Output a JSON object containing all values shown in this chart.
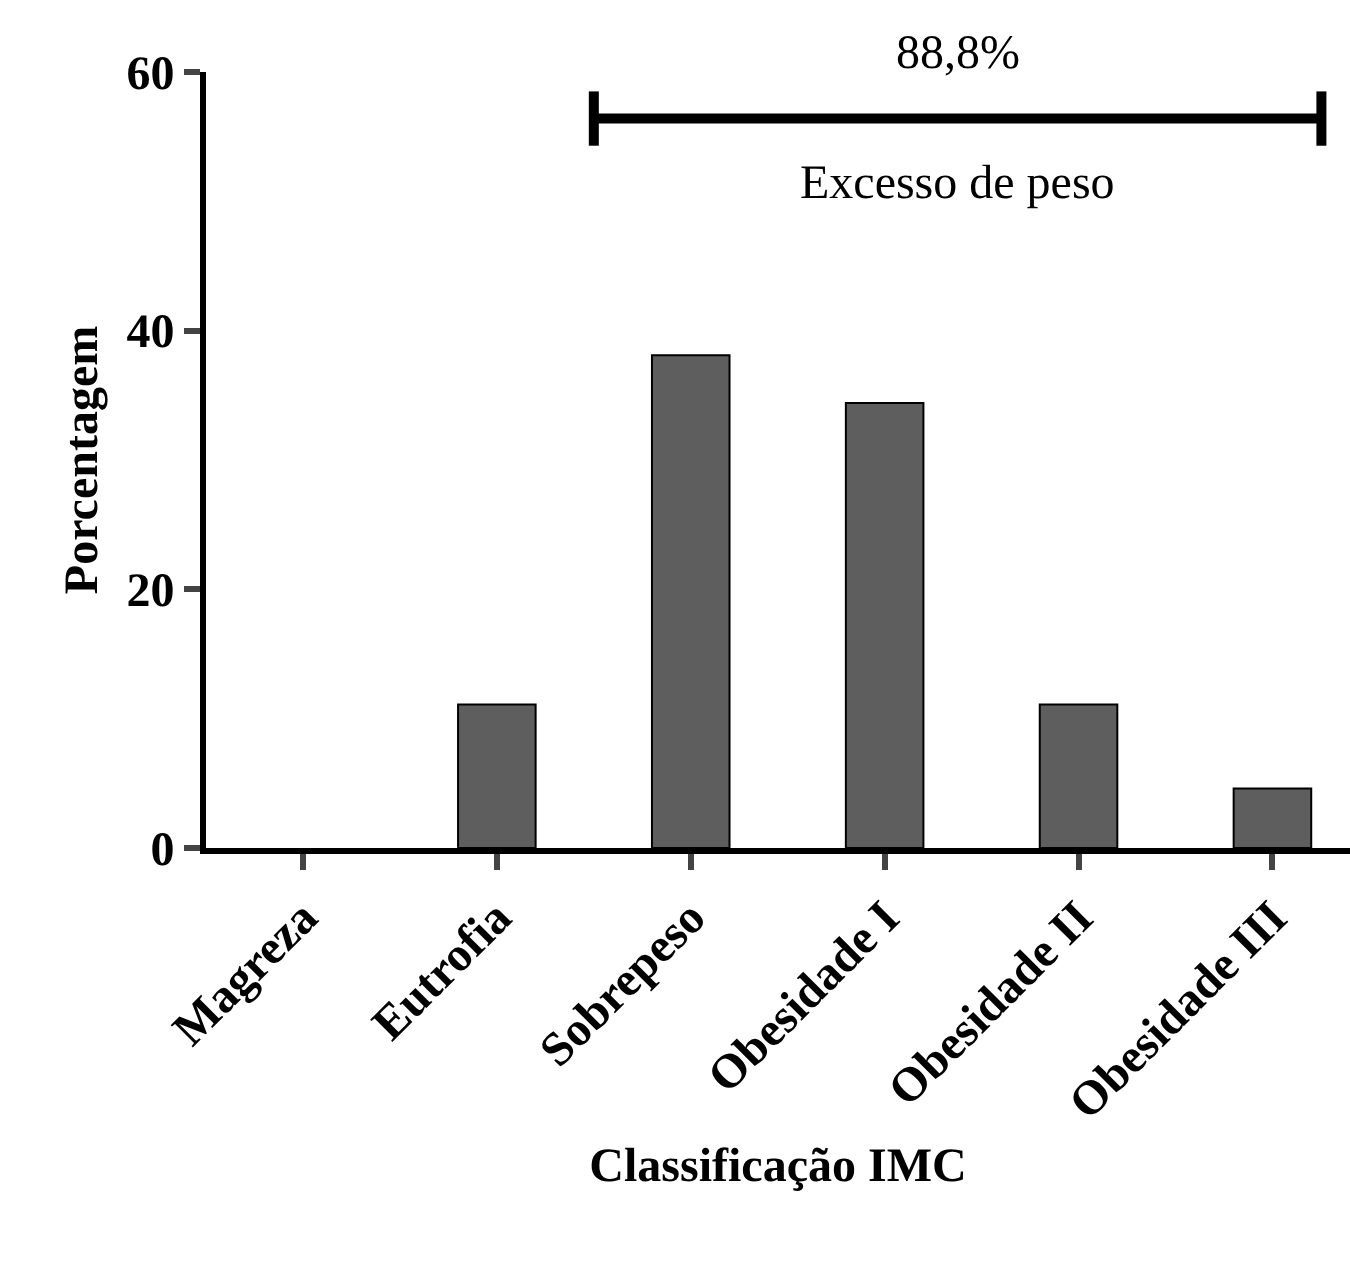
{
  "chart_data": {
    "type": "bar",
    "xlabel": "Classificação IMC",
    "ylabel": "Porcentagem",
    "categories": [
      "Magreza",
      "Eutrofia",
      "Sobrepeso",
      "Obesidade I",
      "Obesidade II",
      "Obesidade III"
    ],
    "values": [
      0,
      11.1,
      38.1,
      34.4,
      11.1,
      4.6
    ],
    "color": "#5e5e5e",
    "ylim": [
      0,
      60
    ],
    "yticks": [
      0,
      20,
      40,
      60
    ],
    "legend": false,
    "ref_lines": [
      {
        "axis": "y",
        "value": 56.4,
        "label": "Excesso de peso",
        "color": "#000000"
      }
    ],
    "annotations": [
      "88,8%"
    ]
  }
}
